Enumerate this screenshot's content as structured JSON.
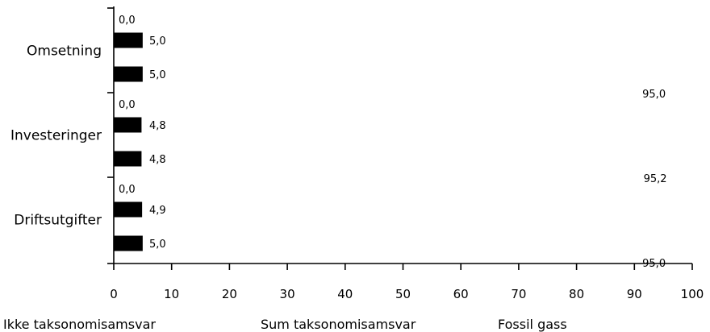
{
  "chart_data": {
    "type": "bar",
    "orientation": "horizontal",
    "title": "",
    "xlabel": "",
    "ylabel": "",
    "xlim": [
      0,
      100
    ],
    "x_ticks": [
      "0",
      "10",
      "20",
      "30",
      "40",
      "50",
      "60",
      "70",
      "80",
      "90",
      "100"
    ],
    "categories": [
      "Omsetning",
      "Investeringer",
      "Driftsutgifter"
    ],
    "series": [
      {
        "name": "Fossil gass",
        "color": "#000000",
        "values": [
          0.0,
          0.0,
          0.0
        ],
        "labels": [
          "0,0",
          "0,0",
          "0,0"
        ]
      },
      {
        "name": "",
        "color": "#000000",
        "values": [
          5.0,
          4.8,
          4.9
        ],
        "labels": [
          "5,0",
          "4,8",
          "4,9"
        ]
      },
      {
        "name": "Sum taksonomisamsvar",
        "color": "#000000",
        "values": [
          5.0,
          4.8,
          5.0
        ],
        "labels": [
          "5,0",
          "4,8",
          "5,0"
        ]
      },
      {
        "name": "Ikke taksonomisamsvar",
        "color": "#ffffff",
        "values": [
          95.0,
          95.2,
          95.0
        ],
        "labels": [
          "95,0",
          "95,2",
          "95,0"
        ]
      }
    ],
    "legend": {
      "position": "bottom",
      "entries": [
        "Ikke taksonomisamsvar",
        "Sum taksonomisamsvar",
        "Fossil gass"
      ]
    },
    "grid": false
  }
}
